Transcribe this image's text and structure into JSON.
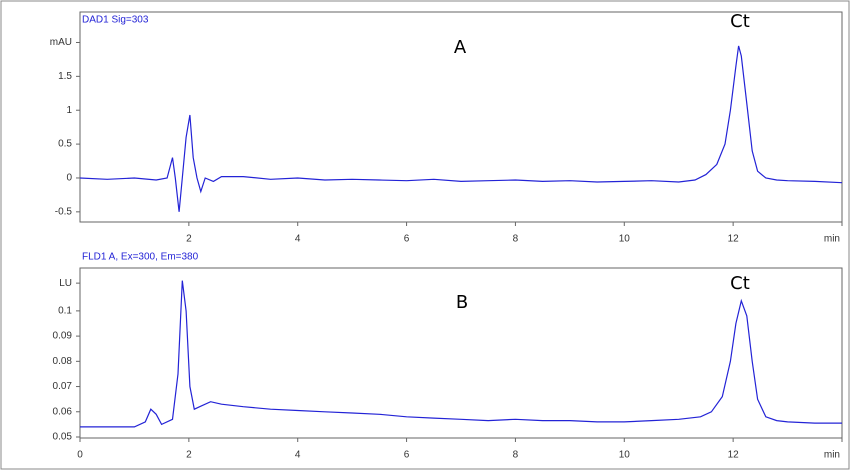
{
  "chart_data": [
    {
      "type": "line",
      "title": "DAD1 Sig=303",
      "annotations": [
        "A",
        "Ct"
      ],
      "color": "#2323d6",
      "xlim": [
        0,
        14
      ],
      "xticks": [
        2,
        4,
        6,
        8,
        10,
        12,
        {
          "value": 14,
          "label": "min"
        }
      ],
      "ylim": [
        -0.65,
        2.45
      ],
      "yticks": [
        -0.5,
        0,
        0.5,
        1,
        1.5,
        {
          "value": 2,
          "label": "mAU"
        }
      ],
      "x": [
        0,
        0.5,
        1.0,
        1.4,
        1.6,
        1.7,
        1.75,
        1.82,
        1.88,
        1.95,
        2.02,
        2.08,
        2.15,
        2.22,
        2.3,
        2.45,
        2.6,
        3.0,
        3.5,
        4.0,
        4.5,
        5.0,
        5.5,
        6.0,
        6.5,
        7.0,
        7.5,
        8.0,
        8.5,
        9.0,
        9.5,
        10.0,
        10.5,
        11.0,
        11.3,
        11.5,
        11.7,
        11.85,
        11.95,
        12.05,
        12.1,
        12.15,
        12.25,
        12.35,
        12.45,
        12.6,
        12.8,
        13.0,
        13.5,
        14.0
      ],
      "values": [
        0.0,
        -0.02,
        0.0,
        -0.03,
        0.0,
        0.3,
        0.0,
        -0.5,
        0.0,
        0.6,
        0.93,
        0.3,
        0.0,
        -0.2,
        0.0,
        -0.05,
        0.02,
        0.02,
        -0.02,
        0.0,
        -0.03,
        -0.02,
        -0.03,
        -0.04,
        -0.02,
        -0.05,
        -0.04,
        -0.03,
        -0.05,
        -0.04,
        -0.06,
        -0.05,
        -0.04,
        -0.06,
        -0.03,
        0.05,
        0.2,
        0.5,
        1.0,
        1.65,
        1.95,
        1.8,
        1.1,
        0.4,
        0.1,
        0.0,
        -0.03,
        -0.04,
        -0.05,
        -0.07
      ]
    },
    {
      "type": "line",
      "title": "FLD1 A, Ex=300, Em=380",
      "annotations": [
        "B",
        "Ct"
      ],
      "color": "#2323d6",
      "xlim": [
        0,
        14
      ],
      "xticks": [
        0,
        2,
        4,
        6,
        8,
        10,
        12,
        {
          "value": 14,
          "label": "min"
        }
      ],
      "ylim": [
        0.0496,
        0.117
      ],
      "yticks": [
        0.05,
        0.06,
        0.07,
        0.08,
        0.09,
        0.1,
        {
          "value": 0.111,
          "label": "LU"
        }
      ],
      "x": [
        0,
        0.5,
        1.0,
        1.2,
        1.3,
        1.4,
        1.5,
        1.7,
        1.8,
        1.88,
        1.95,
        2.02,
        2.1,
        2.2,
        2.4,
        2.6,
        3.0,
        3.5,
        4.0,
        4.5,
        5.0,
        5.5,
        6.0,
        6.5,
        7.0,
        7.5,
        8.0,
        8.5,
        9.0,
        9.5,
        10.0,
        10.5,
        11.0,
        11.4,
        11.6,
        11.8,
        11.95,
        12.05,
        12.15,
        12.25,
        12.35,
        12.45,
        12.6,
        12.8,
        13.0,
        13.5,
        14.0
      ],
      "values": [
        0.054,
        0.054,
        0.054,
        0.056,
        0.061,
        0.059,
        0.055,
        0.057,
        0.075,
        0.112,
        0.1,
        0.07,
        0.061,
        0.062,
        0.064,
        0.063,
        0.062,
        0.061,
        0.0605,
        0.06,
        0.0595,
        0.059,
        0.058,
        0.0575,
        0.057,
        0.0565,
        0.057,
        0.0565,
        0.0565,
        0.056,
        0.056,
        0.0565,
        0.057,
        0.058,
        0.06,
        0.066,
        0.08,
        0.095,
        0.104,
        0.098,
        0.08,
        0.065,
        0.058,
        0.0565,
        0.056,
        0.0555,
        0.0555
      ]
    }
  ]
}
